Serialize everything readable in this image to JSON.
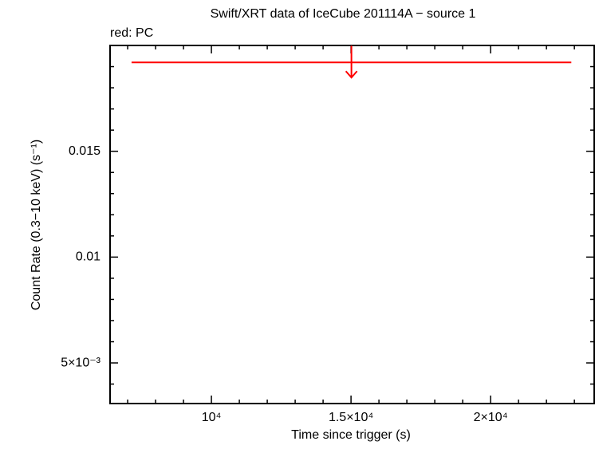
{
  "chart_data": {
    "type": "scatter",
    "title": "Swift/XRT data of IceCube 201114A − source 1",
    "subtitle": "red: PC",
    "x_label": "Time since trigger (s)",
    "y_label": "Count Rate (0.3−10 keV) (s⁻¹)",
    "xlim": [
      6370,
      23710
    ],
    "ylim": [
      0.00308,
      0.02
    ],
    "xticks": [
      {
        "value": 10000,
        "label": "10⁴"
      },
      {
        "value": 15000,
        "label": "1.5×10⁴"
      },
      {
        "value": 20000,
        "label": "2×10⁴"
      }
    ],
    "yticks": [
      {
        "value": 0.005,
        "label": "5×10⁻³"
      },
      0.01,
      0.015
    ],
    "xminorticks": [
      7000,
      8000,
      9000,
      11000,
      12000,
      13000,
      14000,
      16000,
      17000,
      18000,
      19000,
      21000,
      22000,
      23000
    ],
    "yminorticks": [
      0.004,
      0.006,
      0.007,
      0.008,
      0.009,
      0.011,
      0.012,
      0.013,
      0.014,
      0.016,
      0.017,
      0.018,
      0.019
    ],
    "series": [
      {
        "color": "#ff0000",
        "x_start": [
          7140
        ],
        "x_end": [
          22890
        ],
        "values": [
          0.0192
        ],
        "upper_limit": true
      }
    ]
  }
}
